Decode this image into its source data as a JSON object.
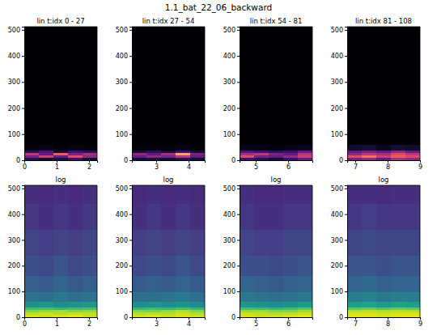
{
  "chart_data": {
    "type": "heatmap",
    "title": "1.1_bat_22_06_backward",
    "panels": [
      {
        "type": "heatmap",
        "title": "lin t:idx 0 - 27",
        "color": "magma",
        "zlim": [
          0,
          1
        ],
        "xlim": [
          0,
          2.25
        ],
        "xticks": [
          0,
          1,
          2
        ],
        "ylim": [
          0,
          512
        ],
        "yticks": [
          0,
          100,
          200,
          300,
          400,
          500
        ],
        "x_edges": [
          0,
          0.45,
          0.9,
          1.35,
          1.8,
          2.25
        ],
        "y_edges": [
          0,
          10,
          20,
          30,
          40,
          60,
          100,
          160,
          240,
          340,
          440,
          512
        ],
        "cells": [
          [
            0.15,
            0.1,
            0.12,
            0.2,
            0.1
          ],
          [
            0.35,
            0.55,
            0.3,
            0.6,
            0.4
          ],
          [
            0.5,
            0.3,
            0.65,
            0.35,
            0.45
          ],
          [
            0.15,
            0.25,
            0.1,
            0.2,
            0.15
          ],
          [
            0.03,
            0.05,
            0.02,
            0.04,
            0.03
          ],
          [
            0,
            0,
            0,
            0,
            0
          ],
          [
            0,
            0,
            0,
            0,
            0
          ],
          [
            0,
            0,
            0,
            0,
            0
          ],
          [
            0,
            0,
            0,
            0,
            0
          ],
          [
            0,
            0,
            0,
            0,
            0
          ],
          [
            0,
            0,
            0,
            0,
            0
          ]
        ]
      },
      {
        "type": "heatmap",
        "title": "lin t:idx 27 - 54",
        "color": "magma",
        "zlim": [
          0,
          1
        ],
        "xlim": [
          2.25,
          4.5
        ],
        "xticks": [
          3,
          4
        ],
        "ylim": [
          0,
          512
        ],
        "yticks": [
          0,
          100,
          200,
          300,
          400,
          500
        ],
        "x_edges": [
          2.25,
          2.7,
          3.15,
          3.6,
          4.05,
          4.5
        ],
        "y_edges": [
          0,
          10,
          20,
          30,
          40,
          60,
          100,
          160,
          240,
          340,
          440,
          512
        ],
        "cells": [
          [
            0.1,
            0.12,
            0.1,
            0.15,
            0.1
          ],
          [
            0.3,
            0.4,
            0.35,
            0.5,
            0.3
          ],
          [
            0.4,
            0.3,
            0.45,
            0.8,
            0.35
          ],
          [
            0.1,
            0.15,
            0.1,
            0.2,
            0.1
          ],
          [
            0.02,
            0.03,
            0.02,
            0.04,
            0.02
          ],
          [
            0,
            0,
            0,
            0,
            0
          ],
          [
            0,
            0,
            0,
            0,
            0
          ],
          [
            0,
            0,
            0,
            0,
            0
          ],
          [
            0,
            0,
            0,
            0,
            0
          ],
          [
            0,
            0,
            0,
            0,
            0
          ],
          [
            0,
            0,
            0,
            0,
            0
          ]
        ]
      },
      {
        "type": "heatmap",
        "title": "lin t:idx 54 - 81",
        "color": "magma",
        "zlim": [
          0,
          1
        ],
        "xlim": [
          4.5,
          6.75
        ],
        "xticks": [
          5,
          6
        ],
        "ylim": [
          0,
          512
        ],
        "yticks": [
          0,
          100,
          200,
          300,
          400,
          500
        ],
        "x_edges": [
          4.5,
          4.95,
          5.4,
          5.85,
          6.3,
          6.75
        ],
        "y_edges": [
          0,
          10,
          20,
          30,
          40,
          60,
          100,
          160,
          240,
          340,
          440,
          512
        ],
        "cells": [
          [
            0.2,
            0.15,
            0.1,
            0.2,
            0.3
          ],
          [
            0.6,
            0.35,
            0.3,
            0.4,
            0.55
          ],
          [
            0.45,
            0.5,
            0.35,
            0.3,
            0.5
          ],
          [
            0.25,
            0.2,
            0.15,
            0.2,
            0.3
          ],
          [
            0.05,
            0.04,
            0.03,
            0.04,
            0.06
          ],
          [
            0,
            0,
            0,
            0,
            0
          ],
          [
            0,
            0,
            0,
            0,
            0
          ],
          [
            0,
            0,
            0,
            0,
            0
          ],
          [
            0,
            0,
            0,
            0,
            0
          ],
          [
            0,
            0,
            0,
            0,
            0
          ],
          [
            0,
            0,
            0,
            0,
            0
          ]
        ]
      },
      {
        "type": "heatmap",
        "title": "lin t:idx 81 - 108",
        "color": "magma",
        "zlim": [
          0,
          1
        ],
        "xlim": [
          6.75,
          9.0
        ],
        "xticks": [
          7,
          8,
          9
        ],
        "ylim": [
          0,
          512
        ],
        "yticks": [
          0,
          100,
          200,
          300,
          400,
          500
        ],
        "x_edges": [
          6.75,
          7.2,
          7.65,
          8.1,
          8.55,
          9.0
        ],
        "y_edges": [
          0,
          10,
          20,
          30,
          40,
          60,
          100,
          160,
          240,
          340,
          440,
          512
        ],
        "cells": [
          [
            0.35,
            0.4,
            0.3,
            0.45,
            0.4
          ],
          [
            0.6,
            0.7,
            0.55,
            0.65,
            0.6
          ],
          [
            0.4,
            0.5,
            0.45,
            0.6,
            0.5
          ],
          [
            0.3,
            0.35,
            0.3,
            0.4,
            0.3
          ],
          [
            0.08,
            0.1,
            0.06,
            0.1,
            0.08
          ],
          [
            0,
            0,
            0,
            0,
            0
          ],
          [
            0,
            0,
            0,
            0,
            0
          ],
          [
            0,
            0,
            0,
            0,
            0
          ],
          [
            0,
            0,
            0,
            0,
            0
          ],
          [
            0,
            0,
            0,
            0,
            0
          ],
          [
            0,
            0,
            0,
            0,
            0
          ]
        ]
      },
      {
        "type": "heatmap",
        "title": "log",
        "color": "viridis",
        "zlim": [
          -5,
          0
        ],
        "xlim": [
          0,
          2.25
        ],
        "xticks": [
          0,
          1,
          2
        ],
        "ylim": [
          0,
          512
        ],
        "yticks": [
          0,
          100,
          200,
          300,
          400,
          500
        ],
        "x_edges": [
          0,
          0.45,
          0.9,
          1.35,
          1.8,
          2.25
        ],
        "y_edges": [
          0,
          10,
          20,
          30,
          40,
          60,
          100,
          160,
          240,
          340,
          440,
          512
        ],
        "cells": [
          [
            -0.3,
            -0.4,
            -0.3,
            -0.2,
            -0.4
          ],
          [
            -0.5,
            -0.4,
            -0.6,
            -0.4,
            -0.5
          ],
          [
            -0.9,
            -0.8,
            -0.7,
            -0.9,
            -0.8
          ],
          [
            -1.6,
            -1.5,
            -1.7,
            -1.6,
            -1.5
          ],
          [
            -2.5,
            -2.4,
            -2.6,
            -2.5,
            -2.4
          ],
          [
            -3.1,
            -3.2,
            -3.0,
            -3.2,
            -3.1
          ],
          [
            -3.5,
            -3.6,
            -3.4,
            -3.6,
            -3.5
          ],
          [
            -3.8,
            -3.9,
            -3.7,
            -3.9,
            -3.8
          ],
          [
            -4.0,
            -4.1,
            -4.0,
            -4.1,
            -4.0
          ],
          [
            -4.2,
            -4.3,
            -4.2,
            -4.3,
            -4.2
          ],
          [
            -4.3,
            -4.4,
            -4.3,
            -4.4,
            -4.3
          ]
        ]
      },
      {
        "type": "heatmap",
        "title": "log",
        "color": "viridis",
        "zlim": [
          -5,
          0
        ],
        "xlim": [
          2.25,
          4.5
        ],
        "xticks": [
          3,
          4
        ],
        "ylim": [
          0,
          512
        ],
        "yticks": [
          0,
          100,
          200,
          300,
          400,
          500
        ],
        "x_edges": [
          2.25,
          2.7,
          3.15,
          3.6,
          4.05,
          4.5
        ],
        "y_edges": [
          0,
          10,
          20,
          30,
          40,
          60,
          100,
          160,
          240,
          340,
          440,
          512
        ],
        "cells": [
          [
            -0.4,
            -0.3,
            -0.4,
            -0.3,
            -0.4
          ],
          [
            -0.6,
            -0.5,
            -0.6,
            -0.4,
            -0.6
          ],
          [
            -0.9,
            -1.0,
            -0.8,
            -0.6,
            -0.9
          ],
          [
            -1.7,
            -1.6,
            -1.7,
            -1.5,
            -1.7
          ],
          [
            -2.6,
            -2.5,
            -2.6,
            -2.4,
            -2.6
          ],
          [
            -3.2,
            -3.2,
            -3.1,
            -3.0,
            -3.2
          ],
          [
            -3.6,
            -3.5,
            -3.6,
            -3.4,
            -3.6
          ],
          [
            -3.9,
            -3.8,
            -3.9,
            -3.7,
            -3.9
          ],
          [
            -4.1,
            -4.0,
            -4.1,
            -4.0,
            -4.1
          ],
          [
            -4.3,
            -4.2,
            -4.3,
            -4.2,
            -4.3
          ],
          [
            -4.4,
            -4.3,
            -4.4,
            -4.3,
            -4.4
          ]
        ]
      },
      {
        "type": "heatmap",
        "title": "log",
        "color": "viridis",
        "zlim": [
          -5,
          0
        ],
        "xlim": [
          4.5,
          6.75
        ],
        "xticks": [
          5,
          6
        ],
        "ylim": [
          0,
          512
        ],
        "yticks": [
          0,
          100,
          200,
          300,
          400,
          500
        ],
        "x_edges": [
          4.5,
          4.95,
          5.4,
          5.85,
          6.3,
          6.75
        ],
        "y_edges": [
          0,
          10,
          20,
          30,
          40,
          60,
          100,
          160,
          240,
          340,
          440,
          512
        ],
        "cells": [
          [
            -0.3,
            -0.4,
            -0.4,
            -0.3,
            -0.2
          ],
          [
            -0.4,
            -0.5,
            -0.6,
            -0.5,
            -0.4
          ],
          [
            -0.8,
            -0.7,
            -0.9,
            -0.9,
            -0.7
          ],
          [
            -1.5,
            -1.6,
            -1.7,
            -1.6,
            -1.4
          ],
          [
            -2.4,
            -2.5,
            -2.6,
            -2.5,
            -2.3
          ],
          [
            -3.0,
            -3.1,
            -3.2,
            -3.1,
            -3.0
          ],
          [
            -3.4,
            -3.5,
            -3.6,
            -3.5,
            -3.4
          ],
          [
            -3.8,
            -3.8,
            -3.9,
            -3.8,
            -3.7
          ],
          [
            -4.0,
            -4.1,
            -4.1,
            -4.0,
            -4.0
          ],
          [
            -4.2,
            -4.3,
            -4.3,
            -4.2,
            -4.2
          ],
          [
            -4.3,
            -4.4,
            -4.4,
            -4.3,
            -4.3
          ]
        ]
      },
      {
        "type": "heatmap",
        "title": "log",
        "color": "viridis",
        "zlim": [
          -5,
          0
        ],
        "xlim": [
          6.75,
          9.0
        ],
        "xticks": [
          7,
          8,
          9
        ],
        "ylim": [
          0,
          512
        ],
        "yticks": [
          0,
          100,
          200,
          300,
          400,
          500
        ],
        "x_edges": [
          6.75,
          7.2,
          7.65,
          8.1,
          8.55,
          9.0
        ],
        "y_edges": [
          0,
          10,
          20,
          30,
          40,
          60,
          100,
          160,
          240,
          340,
          440,
          512
        ],
        "cells": [
          [
            -0.2,
            -0.2,
            -0.3,
            -0.2,
            -0.2
          ],
          [
            -0.3,
            -0.3,
            -0.4,
            -0.3,
            -0.3
          ],
          [
            -0.6,
            -0.5,
            -0.6,
            -0.5,
            -0.6
          ],
          [
            -1.3,
            -1.2,
            -1.4,
            -1.2,
            -1.3
          ],
          [
            -2.2,
            -2.1,
            -2.3,
            -2.1,
            -2.2
          ],
          [
            -2.9,
            -2.8,
            -3.0,
            -2.9,
            -2.9
          ],
          [
            -3.4,
            -3.3,
            -3.5,
            -3.4,
            -3.4
          ],
          [
            -3.7,
            -3.7,
            -3.8,
            -3.7,
            -3.7
          ],
          [
            -4.0,
            -3.9,
            -4.0,
            -4.0,
            -4.0
          ],
          [
            -4.2,
            -4.1,
            -4.2,
            -4.2,
            -4.2
          ],
          [
            -4.3,
            -4.3,
            -4.4,
            -4.3,
            -4.3
          ]
        ]
      }
    ]
  }
}
